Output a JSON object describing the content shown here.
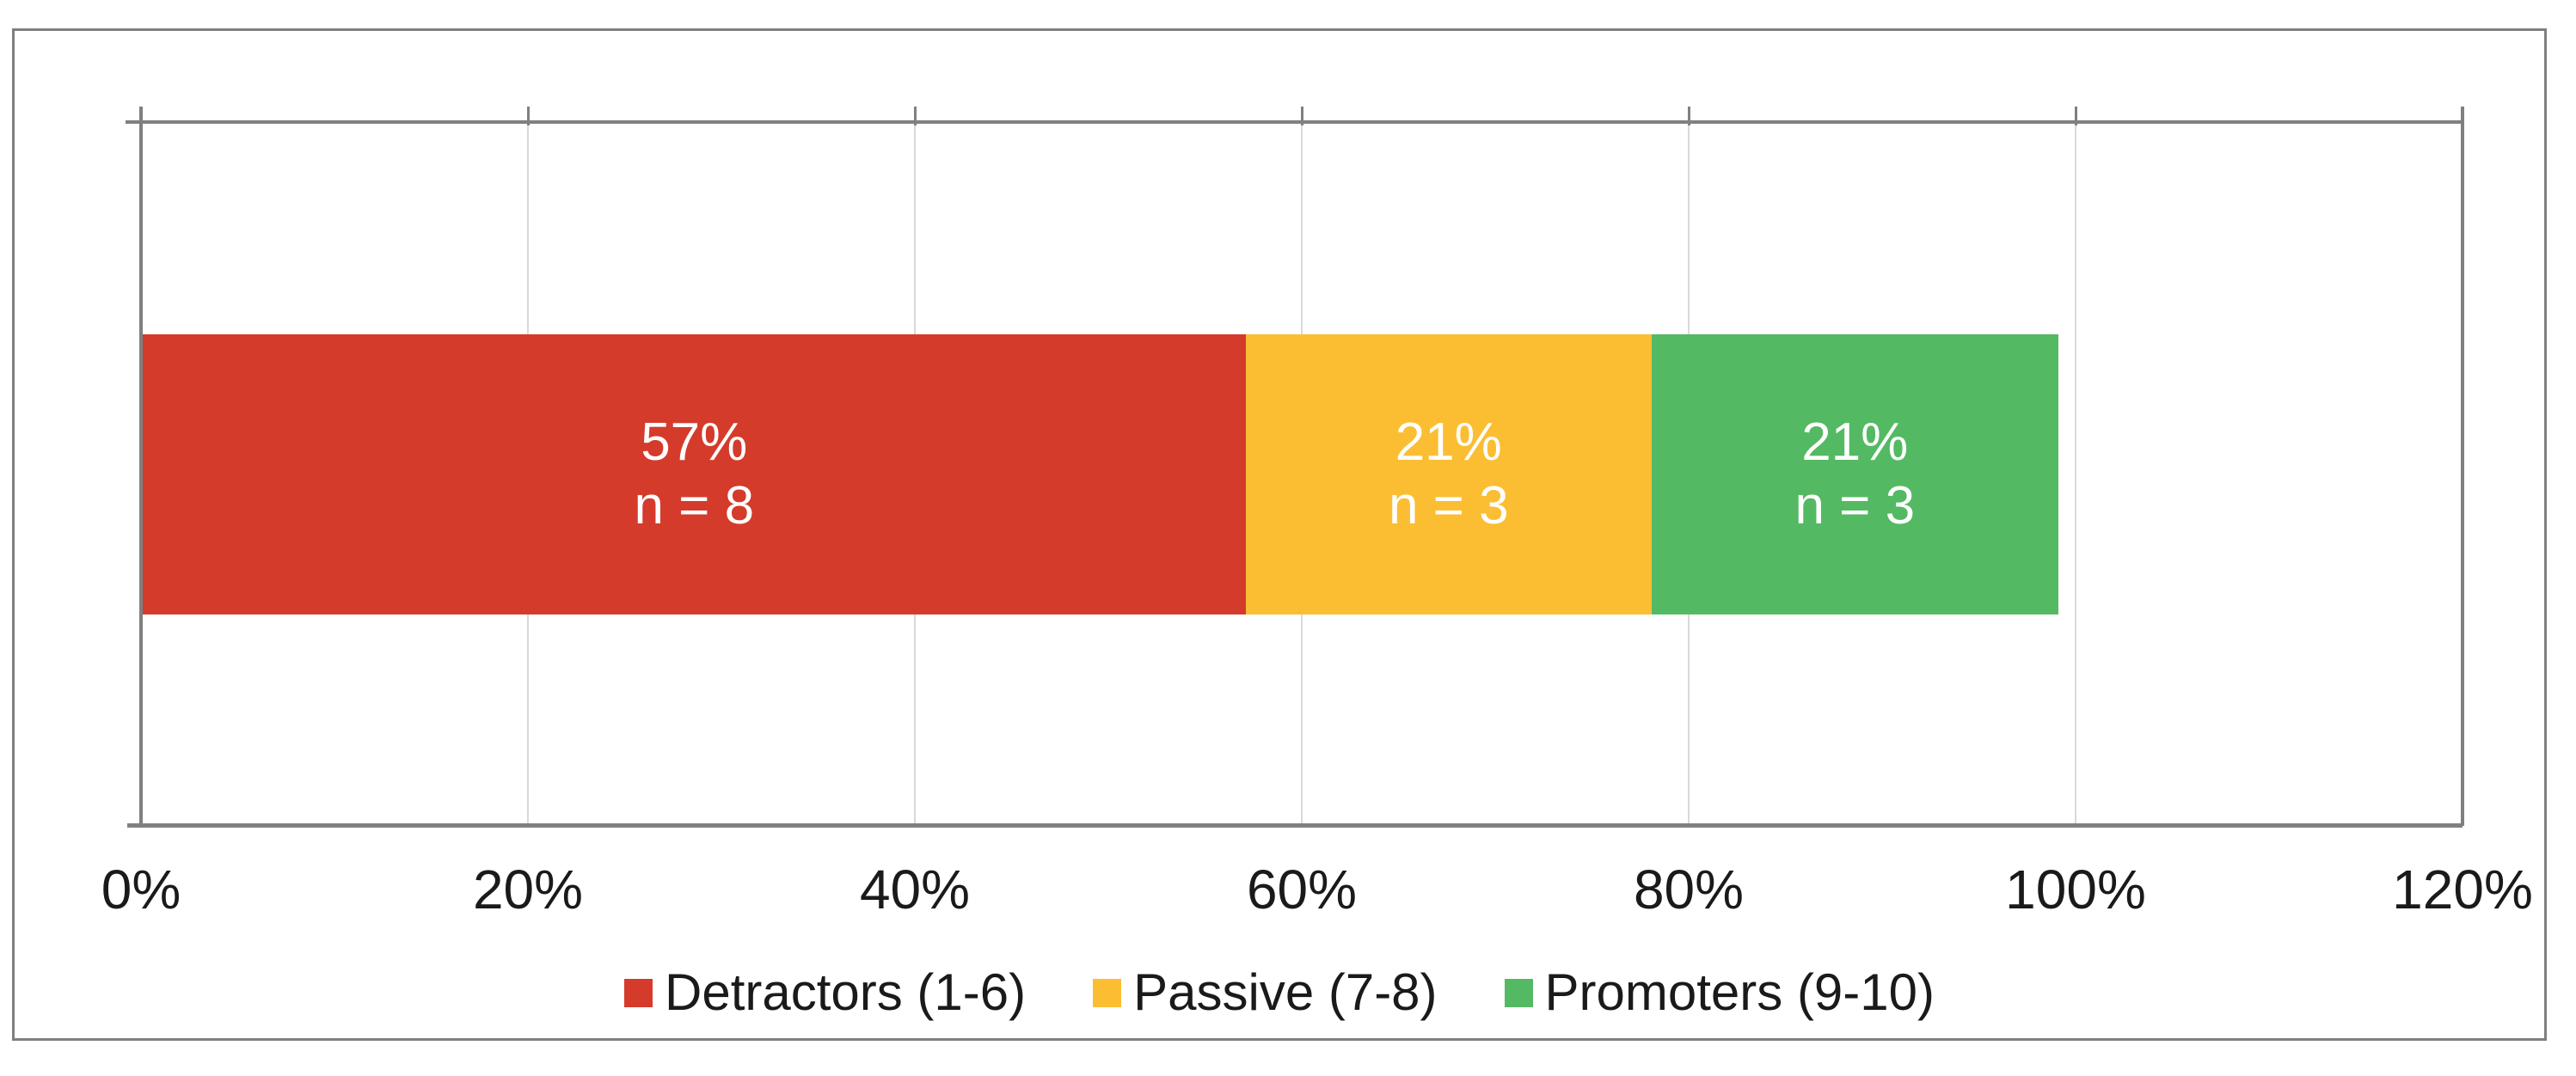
{
  "chart_data": {
    "type": "bar",
    "subtype": "horizontal_stacked",
    "title": "",
    "xlabel": "",
    "ylabel": "",
    "categories": [
      ""
    ],
    "series": [
      {
        "name": "Detractors (1-6)",
        "value_pct": 57,
        "n": 8,
        "label_line1": "57%",
        "label_line2": "n = 8",
        "color": "#d43b2b"
      },
      {
        "name": "Passive (7-8)",
        "value_pct": 21,
        "n": 3,
        "label_line1": "21%",
        "label_line2": "n = 3",
        "color": "#fbbe33"
      },
      {
        "name": "Promoters (9-10)",
        "value_pct": 21,
        "n": 3,
        "label_line1": "21%",
        "label_line2": "n = 3",
        "color": "#54b963"
      }
    ],
    "xlim": [
      0,
      120
    ],
    "x_ticks": [
      "0%",
      "20%",
      "40%",
      "60%",
      "80%",
      "100%",
      "120%"
    ],
    "x_tick_values": [
      0,
      20,
      40,
      60,
      80,
      100,
      120
    ],
    "grid": true,
    "legend_position": "bottom"
  },
  "colors": {
    "background": "#ffffff",
    "frame_border": "#7f7f7f",
    "axis_line": "#808080",
    "gridline": "#d9d9d9",
    "bar_label_text": "#ffffff",
    "tick_label_text": "#1a1a1a",
    "legend_text": "#1a1a1a"
  }
}
